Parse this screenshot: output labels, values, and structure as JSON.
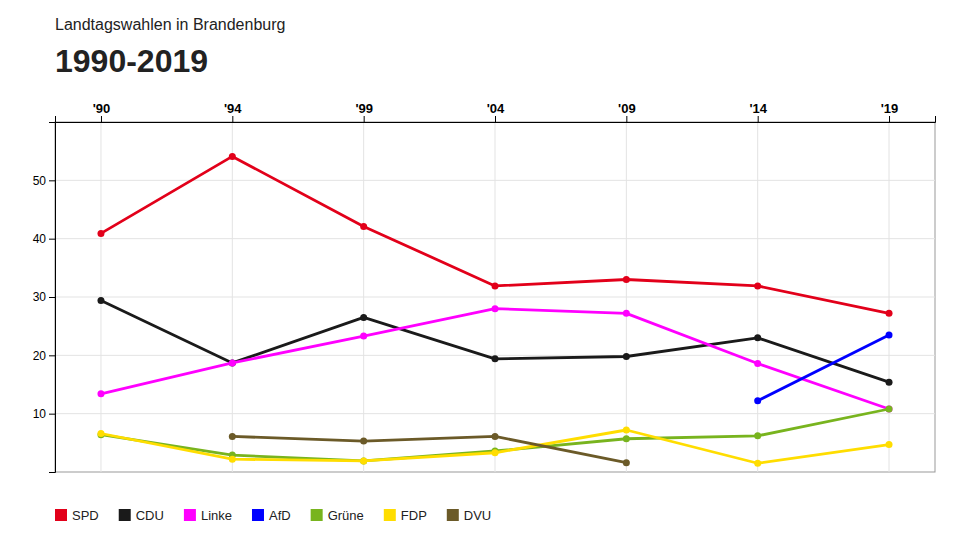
{
  "chart_data": {
    "type": "line",
    "title": "Landtagswahlen in Brandenburg",
    "subtitle": "1990-2019",
    "categories": [
      "'90",
      "'94",
      "'99",
      "'04",
      "'09",
      "'14",
      "'19"
    ],
    "series": [
      {
        "name": "SPD",
        "color": "#e2001a",
        "values": [
          40.9,
          54.1,
          42.1,
          31.9,
          33.0,
          31.9,
          27.2
        ]
      },
      {
        "name": "CDU",
        "color": "#1a1a1a",
        "values": [
          29.4,
          18.7,
          26.5,
          19.4,
          19.8,
          23.0,
          15.4
        ]
      },
      {
        "name": "Linke",
        "color": "#ff00ff",
        "values": [
          13.4,
          18.7,
          23.3,
          28.0,
          27.2,
          18.6,
          10.8
        ]
      },
      {
        "name": "AfD",
        "color": "#0000ff",
        "values": [
          null,
          null,
          null,
          null,
          null,
          12.2,
          23.5
        ]
      },
      {
        "name": "Grüne",
        "color": "#78b41e",
        "values": [
          6.4,
          2.9,
          1.9,
          3.6,
          5.7,
          6.2,
          10.8
        ]
      },
      {
        "name": "FDP",
        "color": "#ffdd00",
        "values": [
          6.6,
          2.2,
          1.9,
          3.3,
          7.2,
          1.5,
          4.7
        ]
      },
      {
        "name": "DVU",
        "color": "#6b5a28",
        "values": [
          null,
          6.1,
          5.3,
          6.1,
          1.6,
          null,
          null
        ]
      }
    ],
    "ylim": [
      0,
      60
    ],
    "yticks": [
      10,
      20,
      30,
      40,
      50
    ],
    "grid": true,
    "legend": "bottom",
    "marker": "circle"
  }
}
